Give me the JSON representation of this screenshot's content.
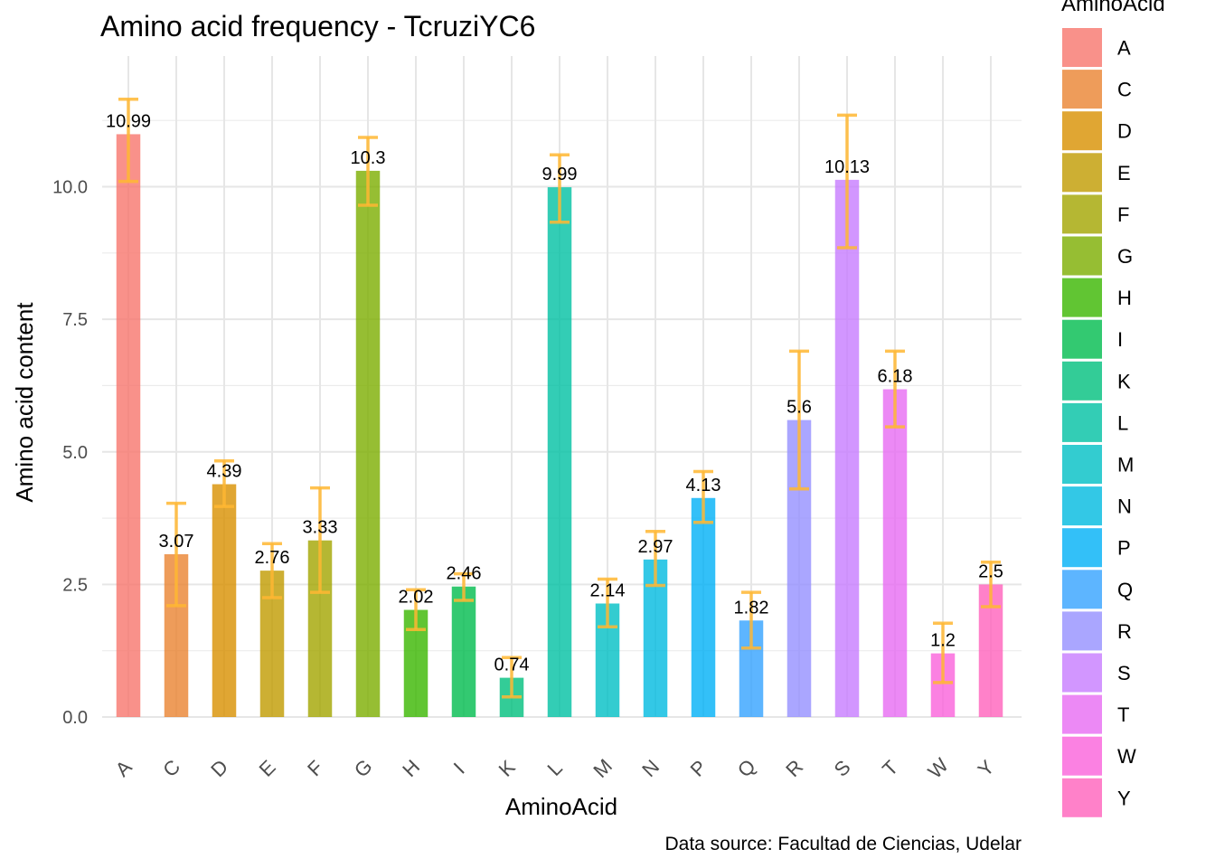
{
  "chart_data": {
    "type": "bar",
    "title": "Amino acid frequency - TcruziYC6",
    "xlabel": "AminoAcid",
    "ylabel": "Amino acid content",
    "caption": "Data source: Facultad de Ciencias, Udelar",
    "legend_title": "AminoAcid",
    "legend_position": "right",
    "grid": true,
    "ylim": [
      0,
      12.2
    ],
    "yticks": [
      0,
      2.5,
      5,
      7.5,
      10
    ],
    "ytick_labels": [
      "0.0",
      "2.5",
      "5.0",
      "7.5",
      "10.0"
    ],
    "categories": [
      "A",
      "C",
      "D",
      "E",
      "F",
      "G",
      "H",
      "I",
      "K",
      "L",
      "M",
      "N",
      "P",
      "Q",
      "R",
      "S",
      "T",
      "W",
      "Y"
    ],
    "values": [
      10.99,
      3.07,
      4.39,
      2.76,
      3.33,
      10.3,
      2.02,
      2.46,
      0.74,
      9.99,
      2.14,
      2.97,
      4.13,
      1.82,
      5.6,
      10.13,
      6.18,
      1.2,
      2.5
    ],
    "value_labels": [
      "10.99",
      "3.07",
      "4.39",
      "2.76",
      "3.33",
      "10.3",
      "2.02",
      "2.46",
      "0.74",
      "9.99",
      "2.14",
      "2.97",
      "4.13",
      "1.82",
      "5.6",
      "10.13",
      "6.18",
      "1.2",
      "2.5"
    ],
    "error_low": [
      10.1,
      2.1,
      3.97,
      2.25,
      2.35,
      9.65,
      1.65,
      2.2,
      0.38,
      9.33,
      1.7,
      2.48,
      3.67,
      1.3,
      4.3,
      8.85,
      5.47,
      0.65,
      2.08
    ],
    "error_high": [
      11.65,
      4.03,
      4.83,
      3.27,
      4.32,
      10.93,
      2.4,
      2.7,
      1.12,
      10.6,
      2.6,
      3.5,
      4.63,
      2.35,
      6.9,
      11.35,
      6.9,
      1.77,
      2.92
    ],
    "colors": [
      "#f8766d",
      "#ea8331",
      "#d89000",
      "#c09b00",
      "#a3a500",
      "#7cae00",
      "#39b600",
      "#00bb4e",
      "#00bf7d",
      "#00c1a3",
      "#00bfc4",
      "#00bae0",
      "#00b0f6",
      "#35a2ff",
      "#9590ff",
      "#c77cff",
      "#e76bf3",
      "#fa62db",
      "#ff62bc"
    ],
    "error_color": "#ffb732"
  }
}
